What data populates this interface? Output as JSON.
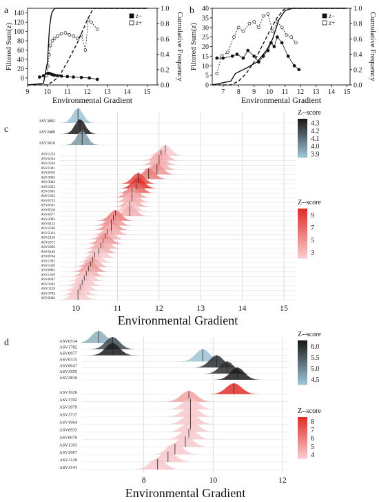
{
  "chart_data": [
    {
      "panel": "a",
      "type": "line",
      "xlabel": "Environmental Gradient",
      "ylabel_left": "Filtered Sum(z)",
      "ylabel_right": "Cumulative Frequency",
      "xlim": [
        9,
        15.5
      ],
      "ylim_left": [
        -15,
        150
      ],
      "ylim_right": [
        0,
        1.0
      ],
      "xticks": [
        "9",
        "10",
        "11",
        "12",
        "13",
        "14",
        "15"
      ],
      "yticks_left": [
        "0",
        "20",
        "40",
        "60",
        "80",
        "100",
        "120",
        "140"
      ],
      "yticks_right": [
        "0.0",
        "0.2",
        "0.4",
        "0.6",
        "0.8",
        "1.0"
      ],
      "legend": [
        "z−",
        "z+"
      ],
      "series": [
        {
          "name": "z−",
          "marker": "filled",
          "x": [
            9.6,
            9.8,
            9.95,
            10.05,
            10.15,
            10.25,
            10.35,
            10.5,
            10.7,
            11.0,
            11.3,
            11.7,
            12.1,
            12.5
          ],
          "y": [
            2,
            5,
            8,
            10,
            9,
            7,
            6,
            5,
            4,
            3,
            2,
            1,
            0,
            -3
          ]
        },
        {
          "name": "z+",
          "marker": "open",
          "x": [
            9.95,
            10.02,
            10.08,
            10.15,
            10.25,
            10.35,
            10.5,
            10.7,
            10.9,
            11.1,
            11.3,
            11.5,
            11.7,
            11.9,
            12.05,
            12.2,
            12.5
          ],
          "y": [
            5,
            25,
            50,
            70,
            80,
            85,
            90,
            95,
            97,
            93,
            90,
            85,
            92,
            60,
            125,
            120,
            105
          ]
        },
        {
          "name": "z− cumulative",
          "style": "solid",
          "x": [
            9.0,
            9.8,
            10.0,
            10.1,
            10.2,
            10.3,
            10.4,
            12.0,
            15.0
          ],
          "y": [
            0.0,
            0.02,
            0.3,
            0.75,
            0.93,
            0.98,
            1.0,
            1.0,
            1.0
          ]
        },
        {
          "name": "z+ cumulative",
          "style": "dashed",
          "x": [
            9.0,
            10.0,
            10.3,
            10.6,
            11.0,
            11.5,
            12.0,
            12.3,
            15.0
          ],
          "y": [
            0.0,
            0.0,
            0.05,
            0.12,
            0.3,
            0.55,
            0.85,
            1.0,
            1.0
          ]
        }
      ]
    },
    {
      "panel": "b",
      "type": "line",
      "xlabel": "Environmental Gradient",
      "ylabel_left": "Filtered Sum(z)",
      "ylabel_right": "Cumulative Frequency",
      "xlim": [
        6.3,
        15.2
      ],
      "ylim_left": [
        0,
        40
      ],
      "ylim_right": [
        0,
        1.0
      ],
      "xticks": [
        "7",
        "8",
        "9",
        "10",
        "11",
        "12",
        "13",
        "14",
        "15"
      ],
      "yticks_left": [
        "0",
        "5",
        "10",
        "15",
        "20",
        "25",
        "30",
        "35",
        "40"
      ],
      "yticks_right": [
        "0.0",
        "0.2",
        "0.4",
        "0.6",
        "0.8",
        "1.0"
      ],
      "legend": [
        "z−",
        "z+"
      ],
      "series": [
        {
          "name": "z−",
          "marker": "filled",
          "x": [
            6.6,
            7.0,
            7.6,
            7.9,
            8.3,
            8.6,
            9.0,
            9.3,
            9.6,
            9.9,
            10.1,
            10.3,
            10.5,
            10.8,
            11.2,
            11.6,
            11.9
          ],
          "y": [
            14,
            14,
            15,
            16,
            14,
            18,
            15,
            12,
            15,
            18,
            22,
            20,
            25,
            22,
            15,
            10,
            8
          ]
        },
        {
          "name": "z+",
          "marker": "open",
          "x": [
            6.6,
            6.9,
            7.3,
            7.7,
            8.0,
            8.3,
            8.7,
            9.0,
            9.3,
            9.6,
            9.9,
            10.2,
            10.5,
            10.8,
            11.1,
            11.4,
            11.7
          ],
          "y": [
            6,
            15,
            17,
            25,
            30,
            28,
            32,
            33,
            30,
            36,
            37,
            28,
            33,
            30,
            26,
            25,
            22
          ]
        },
        {
          "name": "z− cumulative",
          "style": "solid",
          "x": [
            6.3,
            7.5,
            7.8,
            8.5,
            9.2,
            9.8,
            10.2,
            10.6,
            11.0,
            11.5,
            15.0
          ],
          "y": [
            0.0,
            0.05,
            0.15,
            0.22,
            0.3,
            0.45,
            0.6,
            0.85,
            0.97,
            1.0,
            1.0
          ]
        },
        {
          "name": "z+ cumulative",
          "style": "dashed",
          "x": [
            6.3,
            7.5,
            8.0,
            8.5,
            9.0,
            9.5,
            10.0,
            10.5,
            11.0,
            11.5,
            15.0
          ],
          "y": [
            0.0,
            0.0,
            0.05,
            0.15,
            0.3,
            0.5,
            0.7,
            0.88,
            1.0,
            1.0,
            1.0
          ]
        }
      ]
    },
    {
      "panel": "c",
      "type": "ridgeline",
      "xlabel": "Environmental Gradient",
      "xlim": [
        9.6,
        15.3
      ],
      "xticks": [
        "10",
        "11",
        "12",
        "13",
        "14",
        "15"
      ],
      "groups": [
        {
          "colorbar_title": "Z--score",
          "colorbar_ticks": [
            "4.3",
            "4.2",
            "4.1",
            "4.0",
            "3.9"
          ],
          "colors": [
            "#1b1b1b",
            "#9cc3d3"
          ],
          "rows": [
            {
              "label": "ASV3892",
              "peak": 10.05,
              "z": 3.9
            },
            {
              "label": "ASV2489",
              "peak": 10.1,
              "z": 4.3
            },
            {
              "label": "ASV3910",
              "peak": 10.15,
              "z": 4.0
            }
          ]
        },
        {
          "colorbar_title": "Z--score",
          "colorbar_ticks": [
            "9",
            "7",
            "5",
            "3"
          ],
          "colors": [
            "#e0302a",
            "#f7c9cc"
          ],
          "rows": [
            {
              "label": "ASV1224",
              "peak": 12.15,
              "z": 3
            },
            {
              "label": "ASV0244",
              "peak": 12.05,
              "z": 4
            },
            {
              "label": "ASV3564",
              "peak": 12.0,
              "z": 4
            },
            {
              "label": "ASV1041",
              "peak": 12.0,
              "z": 4
            },
            {
              "label": "ASV0350",
              "peak": 11.95,
              "z": 5
            },
            {
              "label": "ASV3963",
              "peak": 11.75,
              "z": 6
            },
            {
              "label": "ASV3842",
              "peak": 11.5,
              "z": 8
            },
            {
              "label": "ASV1852",
              "peak": 11.5,
              "z": 9
            },
            {
              "label": "ASV1803",
              "peak": 11.45,
              "z": 7
            },
            {
              "label": "ASV1933",
              "peak": 11.35,
              "z": 5
            },
            {
              "label": "ASV0733",
              "peak": 11.35,
              "z": 4
            },
            {
              "label": "ASV0561",
              "peak": 11.35,
              "z": 4
            },
            {
              "label": "ASV0550",
              "peak": 11.3,
              "z": 3
            },
            {
              "label": "ASV0477",
              "peak": 11.3,
              "z": 4
            },
            {
              "label": "ASV2093",
              "peak": 10.95,
              "z": 6
            },
            {
              "label": "ASV0153",
              "peak": 10.9,
              "z": 5
            },
            {
              "label": "ASV2506",
              "peak": 10.85,
              "z": 5
            },
            {
              "label": "ASV2314",
              "peak": 10.85,
              "z": 4
            },
            {
              "label": "ASV2136",
              "peak": 10.75,
              "z": 4
            },
            {
              "label": "ASV2671",
              "peak": 10.7,
              "z": 5
            },
            {
              "label": "ASV1926",
              "peak": 10.65,
              "z": 4
            },
            {
              "label": "ASV0146",
              "peak": 10.6,
              "z": 4
            },
            {
              "label": "ASV0704",
              "peak": 10.55,
              "z": 3
            },
            {
              "label": "ASV1393",
              "peak": 10.45,
              "z": 3
            },
            {
              "label": "ASV1430",
              "peak": 10.4,
              "z": 4
            },
            {
              "label": "ASV0865",
              "peak": 10.35,
              "z": 5
            },
            {
              "label": "ASV1429",
              "peak": 10.3,
              "z": 4
            },
            {
              "label": "ASV0647",
              "peak": 10.25,
              "z": 3
            },
            {
              "label": "ASV3202",
              "peak": 10.2,
              "z": 3
            },
            {
              "label": "ASV1129",
              "peak": 10.15,
              "z": 3
            },
            {
              "label": "ASV3702",
              "peak": 10.1,
              "z": 3
            },
            {
              "label": "ASV0286",
              "peak": 10.05,
              "z": 3
            }
          ]
        }
      ]
    },
    {
      "panel": "d",
      "type": "ridgeline",
      "xlabel": "Environmental Gradient",
      "xlim": [
        6.2,
        12.2
      ],
      "xticks": [
        "8",
        "10",
        "12"
      ],
      "groups": [
        {
          "colorbar_title": "Z--score",
          "colorbar_ticks": [
            "6.0",
            "5.5",
            "5.0",
            "4.5"
          ],
          "colors": [
            "#1b1b1b",
            "#9cc3d3"
          ],
          "rows": [
            {
              "label": "ASV0534",
              "peak": 6.7,
              "z": 4.5
            },
            {
              "label": "ASV1782",
              "peak": 7.1,
              "z": 5.5
            },
            {
              "label": "ASV0977",
              "peak": 7.1,
              "z": 6.0
            },
            {
              "label": "ASV0315",
              "peak": 9.7,
              "z": 4.3
            },
            {
              "label": "ASV0647",
              "peak": 10.1,
              "z": 5.8
            },
            {
              "label": "ASV3955",
              "peak": 10.4,
              "z": 5.8
            },
            {
              "label": "ASV3816",
              "peak": 10.7,
              "z": 6.0
            }
          ]
        },
        {
          "colorbar_title": "Z--score",
          "colorbar_ticks": [
            "8",
            "7",
            "6",
            "5",
            "4"
          ],
          "colors": [
            "#e0302a",
            "#f7c9cc"
          ],
          "rows": [
            {
              "label": "ASV1026",
              "peak": 10.6,
              "z": 8
            },
            {
              "label": "ASV3702",
              "peak": 9.3,
              "z": 5
            },
            {
              "label": "ASV3979",
              "peak": 9.35,
              "z": 4
            },
            {
              "label": "ASV3737",
              "peak": 9.35,
              "z": 4
            },
            {
              "label": "ASV1064",
              "peak": 9.35,
              "z": 4
            },
            {
              "label": "ASV0933",
              "peak": 9.35,
              "z": 4
            },
            {
              "label": "ASV0070",
              "peak": 9.3,
              "z": 4
            },
            {
              "label": "ASV1393",
              "peak": 9.2,
              "z": 4
            },
            {
              "label": "ASV2067",
              "peak": 8.9,
              "z": 4
            },
            {
              "label": "ASV1129",
              "peak": 8.7,
              "z": 4
            },
            {
              "label": "ASV3141",
              "peak": 8.4,
              "z": 4
            }
          ]
        }
      ]
    }
  ]
}
